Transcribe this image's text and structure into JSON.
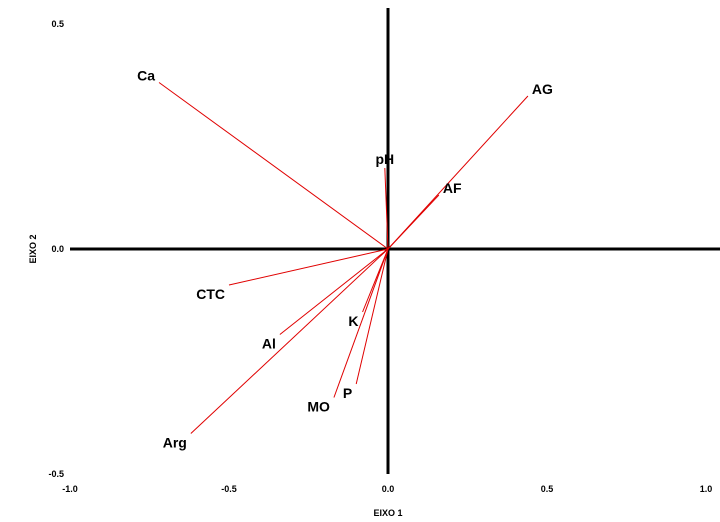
{
  "chart_data": {
    "type": "scatter",
    "subtype": "biplot-vectors",
    "xlabel": "EIXO 1",
    "ylabel": "EIXO 2",
    "xlim": [
      -1.0,
      1.0
    ],
    "ylim": [
      -0.5,
      0.5
    ],
    "x_ticks": [
      "-1.0",
      "-0.5",
      "0.0",
      "0.5",
      "1.0"
    ],
    "y_ticks": [
      "0.5",
      "0.0",
      "-0.5"
    ],
    "vector_color": "#e00000",
    "axis_color": "#000000",
    "vectors": [
      {
        "label": "Ca",
        "x": -0.72,
        "y": 0.37
      },
      {
        "label": "AG",
        "x": 0.44,
        "y": 0.34
      },
      {
        "label": "pH",
        "x": -0.01,
        "y": 0.18
      },
      {
        "label": "AF",
        "x": 0.16,
        "y": 0.12
      },
      {
        "label": "CTC",
        "x": -0.5,
        "y": -0.08
      },
      {
        "label": "K",
        "x": -0.08,
        "y": -0.14
      },
      {
        "label": "Al",
        "x": -0.34,
        "y": -0.19
      },
      {
        "label": "P",
        "x": -0.1,
        "y": -0.3
      },
      {
        "label": "MO",
        "x": -0.17,
        "y": -0.33
      },
      {
        "label": "Arg",
        "x": -0.62,
        "y": -0.41
      }
    ]
  }
}
